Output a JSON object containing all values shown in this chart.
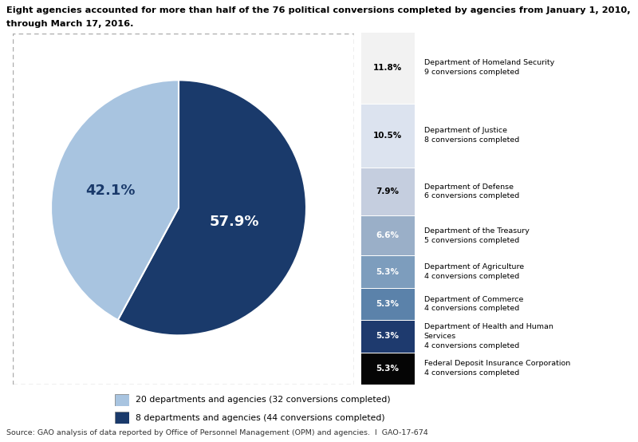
{
  "title_line1": "Eight agencies accounted for more than half of the 76 political conversions completed by agencies from January 1, 2010,",
  "title_line2": "through March 17, 2016.",
  "pie_values": [
    57.9,
    42.1
  ],
  "pie_colors": [
    "#1a3a6b",
    "#a8c4e0"
  ],
  "pie_label_dark": "57.9%",
  "pie_label_light": "42.1%",
  "bar_segments": [
    {
      "label": "11.8%",
      "pct": 11.8,
      "color": "#f2f2f2",
      "text_color": "#000000",
      "agency": "Department of Homeland Security",
      "conversions": "9 conversions completed"
    },
    {
      "label": "10.5%",
      "pct": 10.5,
      "color": "#dce3ef",
      "text_color": "#000000",
      "agency": "Department of Justice",
      "conversions": "8 conversions completed"
    },
    {
      "label": "7.9%",
      "pct": 7.9,
      "color": "#c5cedf",
      "text_color": "#000000",
      "agency": "Department of Defense",
      "conversions": "6 conversions completed"
    },
    {
      "label": "6.6%",
      "pct": 6.6,
      "color": "#9aafc8",
      "text_color": "#ffffff",
      "agency": "Department of the Treasury",
      "conversions": "5 conversions completed"
    },
    {
      "label": "5.3%",
      "pct": 5.3,
      "color": "#7d9dbd",
      "text_color": "#ffffff",
      "agency": "Department of Agriculture",
      "conversions": "4 conversions completed"
    },
    {
      "label": "5.3%",
      "pct": 5.3,
      "color": "#5b82aa",
      "text_color": "#ffffff",
      "agency": "Department of Commerce",
      "conversions": "4 conversions completed"
    },
    {
      "label": "5.3%",
      "pct": 5.3,
      "color": "#1e3a6e",
      "text_color": "#ffffff",
      "agency": "Department of Health and Human\nServices",
      "conversions": "4 conversions completed"
    },
    {
      "label": "5.3%",
      "pct": 5.3,
      "color": "#050505",
      "text_color": "#ffffff",
      "agency": "Federal Deposit Insurance Corporation",
      "conversions": "4 conversions completed"
    }
  ],
  "legend": [
    {
      "color": "#a8c4e0",
      "label": "20 departments and agencies (32 conversions completed)"
    },
    {
      "color": "#1a3a6b",
      "label": "8 departments and agencies (44 conversions completed)"
    }
  ],
  "source": "Source: GAO analysis of data reported by Office of Personnel Management (OPM) and agencies.  I  GAO-17-674",
  "background_color": "#ffffff",
  "fig_width": 8.0,
  "fig_height": 5.54
}
